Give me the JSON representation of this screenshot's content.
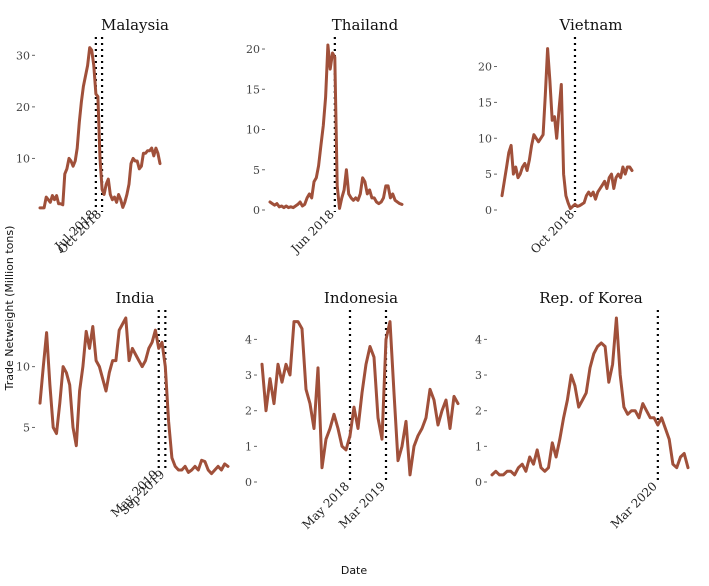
{
  "chart_data": {
    "type": "line",
    "xlabel": "Date",
    "ylabel": "Trade Netweight (Million tons)",
    "series_color": "#a0503a",
    "panels": [
      {
        "title": "Malaysia",
        "ylim": [
          0,
          32
        ],
        "yticks": [
          10,
          20,
          30
        ],
        "values": [
          0.4,
          0.4,
          0.4,
          2.5,
          2.0,
          1.5,
          2.8,
          2.0,
          2.8,
          1.2,
          1.2,
          1.0,
          7.0,
          8.0,
          10.0,
          9.5,
          8.5,
          9.5,
          12.0,
          17.0,
          21.0,
          24.0,
          26.0,
          28.0,
          31.5,
          31.0,
          28.0,
          22.5,
          22.0,
          10.0,
          4.0,
          3.0,
          5.0,
          6.0,
          3.0,
          2.0,
          2.5,
          1.5,
          3.0,
          2.0,
          0.5,
          1.5,
          3.0,
          5.0,
          9.0,
          10.0,
          9.5,
          9.5,
          8.0,
          8.5,
          11.0,
          11.0,
          11.5,
          11.5,
          12.0,
          10.5,
          12.0,
          11.0,
          9.0
        ],
        "events": [
          {
            "label": "Jul 2018",
            "index": 27
          },
          {
            "label": "Oct 2018",
            "index": 30
          }
        ]
      },
      {
        "title": "Thailand",
        "ylim": [
          0,
          20.5
        ],
        "yticks": [
          0,
          5,
          10,
          15,
          20
        ],
        "values": [
          1.0,
          0.8,
          0.6,
          0.8,
          0.4,
          0.5,
          0.3,
          0.5,
          0.3,
          0.4,
          0.3,
          0.5,
          0.7,
          1.0,
          0.5,
          0.7,
          1.5,
          2.0,
          1.5,
          3.5,
          4.0,
          5.5,
          8.0,
          10.5,
          14.0,
          20.5,
          17.5,
          19.5,
          19.0,
          3.0,
          0.2,
          1.5,
          2.5,
          5.0,
          2.0,
          1.5,
          1.2,
          1.5,
          1.2,
          2.0,
          4.0,
          3.5,
          2.0,
          2.5,
          1.5,
          1.5,
          1.0,
          0.8,
          1.0,
          1.5,
          3.0,
          3.0,
          1.5,
          2.0,
          1.2,
          1.0,
          0.8,
          0.7
        ],
        "events": [
          {
            "label": "Jun 2018",
            "index": 28
          }
        ]
      },
      {
        "title": "Vietnam",
        "ylim": [
          0,
          23
        ],
        "yticks": [
          0,
          5,
          10,
          15,
          20
        ],
        "values": [
          2.0,
          4.0,
          6.0,
          8.0,
          9.0,
          5.0,
          6.0,
          4.5,
          5.0,
          6.0,
          6.5,
          5.5,
          7.0,
          9.0,
          10.5,
          10.0,
          9.5,
          10.0,
          10.5,
          16.0,
          22.5,
          18.0,
          12.5,
          13.0,
          10.0,
          14.0,
          17.5,
          5.0,
          2.0,
          1.0,
          0.2,
          0.5,
          0.8,
          0.5,
          0.6,
          0.8,
          1.0,
          2.0,
          2.5,
          2.0,
          2.5,
          1.5,
          2.5,
          3.0,
          3.5,
          4.0,
          3.0,
          4.5,
          5.0,
          3.0,
          4.5,
          5.0,
          4.5,
          6.0,
          5.0,
          6.0,
          6.0,
          5.5
        ],
        "events": [
          {
            "label": "Oct 2018",
            "index": 32
          }
        ]
      },
      {
        "title": "India",
        "ylim": [
          1.5,
          14
        ],
        "yticks": [
          5,
          10
        ],
        "values": [
          7.0,
          10.0,
          12.8,
          8.5,
          5.0,
          4.5,
          7.0,
          10.0,
          9.5,
          8.5,
          5.0,
          3.5,
          8.0,
          10.0,
          12.9,
          11.5,
          13.3,
          10.5,
          10.0,
          9.0,
          8.0,
          9.5,
          10.5,
          10.5,
          13.0,
          13.5,
          14.0,
          10.5,
          11.5,
          11.0,
          10.5,
          10.0,
          10.5,
          11.5,
          12.0,
          13.0,
          11.5,
          12.0,
          10.0,
          5.5,
          2.5,
          1.8,
          1.5,
          1.5,
          1.8,
          1.3,
          1.5,
          1.8,
          1.5,
          2.3,
          2.2,
          1.5,
          1.2,
          1.5,
          1.8,
          1.5,
          2.0,
          1.8
        ],
        "events": [
          {
            "label": "May 2019",
            "index": 36
          },
          {
            "label": "Sep 2019",
            "index": 38
          }
        ]
      },
      {
        "title": "Indonesia",
        "ylim": [
          0,
          4.6
        ],
        "yticks": [
          0,
          1,
          2,
          3,
          4
        ],
        "values": [
          3.3,
          2.0,
          2.9,
          2.2,
          3.3,
          2.8,
          3.3,
          3.0,
          4.5,
          4.5,
          4.3,
          2.6,
          2.2,
          1.5,
          3.2,
          0.4,
          1.2,
          1.5,
          1.9,
          1.5,
          1.0,
          0.9,
          1.3,
          2.1,
          1.5,
          2.5,
          3.3,
          3.8,
          3.5,
          1.8,
          1.2,
          4.0,
          4.5,
          2.5,
          0.6,
          1.0,
          1.7,
          0.2,
          1.0,
          1.3,
          1.5,
          1.8,
          2.6,
          2.3,
          1.6,
          2.0,
          2.3,
          1.5,
          2.4,
          2.2
        ],
        "events": [
          {
            "label": "May 2018",
            "index": 22
          },
          {
            "label": "Mar 2019",
            "index": 31
          }
        ]
      },
      {
        "title": "Rep. of Korea",
        "ylim": [
          0,
          4.6
        ],
        "yticks": [
          0,
          1,
          2,
          3,
          4
        ],
        "values": [
          0.2,
          0.3,
          0.2,
          0.2,
          0.3,
          0.3,
          0.2,
          0.4,
          0.5,
          0.3,
          0.7,
          0.5,
          0.9,
          0.4,
          0.3,
          0.4,
          1.1,
          0.7,
          1.2,
          1.8,
          2.3,
          3.0,
          2.7,
          2.1,
          2.3,
          2.5,
          3.2,
          3.6,
          3.8,
          3.9,
          3.8,
          2.8,
          3.3,
          4.6,
          3.0,
          2.1,
          1.9,
          2.0,
          2.0,
          1.8,
          2.2,
          2.0,
          1.8,
          1.8,
          1.6,
          1.8,
          1.5,
          1.2,
          0.5,
          0.4,
          0.7,
          0.8,
          0.4
        ],
        "events": [
          {
            "label": "Mar 2020",
            "index": 44
          }
        ]
      }
    ]
  }
}
